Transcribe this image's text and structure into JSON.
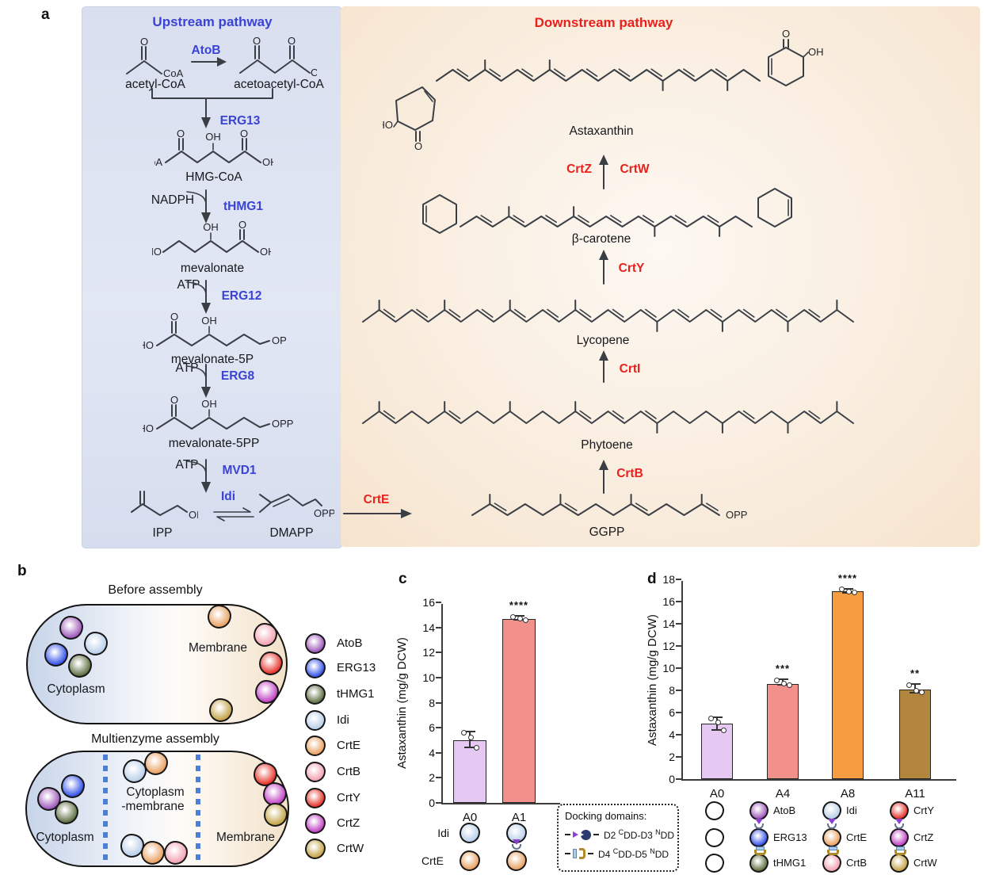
{
  "figure": {
    "a": "a",
    "b": "b",
    "c": "c",
    "d": "d"
  },
  "panel_a": {
    "upstream_title": "Upstream pathway",
    "downstream_title": "Downstream pathway",
    "colors": {
      "upstream_accent": "#3a43d4",
      "downstream_accent": "#e8211d"
    },
    "enzymes_upstream": [
      "AtoB",
      "ERG13",
      "tHMG1",
      "ERG12",
      "ERG8",
      "MVD1",
      "Idi"
    ],
    "enzymes_downstream": [
      "CrtE",
      "CrtB",
      "CrtI",
      "CrtY",
      "CrtZ",
      "CrtW"
    ],
    "cofactors": [
      "NADPH",
      "ATP",
      "ATP",
      "ATP"
    ],
    "molecules": {
      "acetyl_coa": {
        "name": "acetyl-CoA",
        "atoms": [
          "O",
          "CoA"
        ]
      },
      "acetoacetyl_coa": {
        "name": "acetoacetyl-CoA",
        "atoms": [
          "O",
          "O",
          "CoA"
        ]
      },
      "hmg_coa": {
        "name": "HMG-CoA",
        "atoms": [
          "CoA",
          "O",
          "OH",
          "O",
          "OH"
        ]
      },
      "mevalonate": {
        "name": "mevalonate",
        "atoms": [
          "HO",
          "OH",
          "O",
          "OH"
        ]
      },
      "mevalonate_5p": {
        "name": "mevalonate-5P",
        "atoms": [
          "HO",
          "O",
          "OH",
          "OP"
        ]
      },
      "mevalonate_5pp": {
        "name": "mevalonate-5PP",
        "atoms": [
          "HO",
          "O",
          "OH",
          "OPP"
        ]
      },
      "ipp": {
        "name": "IPP",
        "atoms": [
          "OPP"
        ]
      },
      "dmapp": {
        "name": "DMAPP",
        "atoms": [
          "OPP"
        ]
      },
      "ggpp": {
        "name": "GGPP",
        "atoms": [
          "OPP"
        ]
      },
      "phytoene": {
        "name": "Phytoene"
      },
      "lycopene": {
        "name": "Lycopene"
      },
      "beta_carotene": {
        "name": "β-carotene"
      },
      "astaxanthin": {
        "name": "Astaxanthin",
        "atoms": [
          "HO",
          "O",
          "O",
          "OH"
        ]
      }
    }
  },
  "panel_b": {
    "before_title": "Before assembly",
    "assembly_title": "Multienzyme assembly",
    "membrane_label": "Membrane",
    "cytoplasm_label": "Cytoplasm",
    "cyto_membrane_label": [
      "Cytoplasm",
      "-membrane"
    ]
  },
  "enzymes": [
    {
      "name": "AtoB",
      "color": "#9c56b8"
    },
    {
      "name": "ERG13",
      "color": "#3350e8"
    },
    {
      "name": "tHMG1",
      "color": "#5c6c3f"
    },
    {
      "name": "Idi",
      "color": "#b9cfe9"
    },
    {
      "name": "CrtE",
      "color": "#e8a060"
    },
    {
      "name": "CrtB",
      "color": "#f2a0b0"
    },
    {
      "name": "CrtY",
      "color": "#e63028"
    },
    {
      "name": "CrtZ",
      "color": "#bf3fc4"
    },
    {
      "name": "CrtW",
      "color": "#c2a244"
    }
  ],
  "dock": {
    "title": "Docking domains:",
    "rows": [
      {
        "pre": "D2 ",
        "sup1": "C",
        "mid": "DD-D3 ",
        "sup2": "N",
        "post": "DD"
      },
      {
        "pre": "D4 ",
        "sup1": "C",
        "mid": "DD-D5 ",
        "sup2": "N",
        "post": "DD"
      }
    ]
  },
  "chart_data": [
    {
      "type": "bar",
      "panel": "c",
      "title": "",
      "xlabel": "",
      "ylabel": "Astaxanthin (mg/g DCW)",
      "categories": [
        "A0",
        "A1"
      ],
      "values": [
        5.0,
        14.7
      ],
      "points": [
        [
          5.6,
          5.2,
          4.4
        ],
        [
          14.85,
          14.7,
          14.6
        ]
      ],
      "significance": [
        "",
        "****"
      ],
      "bar_colors": [
        "#e6c9f2",
        "#f2918b"
      ],
      "ylim": [
        0,
        16
      ],
      "ytick_step": 2,
      "grid": false,
      "legend": "none"
    },
    {
      "type": "bar",
      "panel": "d",
      "title": "",
      "xlabel": "",
      "ylabel": "Astaxanthin (mg/g DCW)",
      "categories": [
        "A0",
        "A4",
        "A8",
        "A11"
      ],
      "values": [
        5.0,
        8.6,
        16.9,
        8.1
      ],
      "points": [
        [
          5.5,
          5.1,
          4.4
        ],
        [
          8.9,
          8.6,
          8.5
        ],
        [
          17.1,
          16.9,
          16.8
        ],
        [
          8.5,
          8.0,
          7.8
        ]
      ],
      "significance": [
        "",
        "***",
        "****",
        "**"
      ],
      "bar_colors": [
        "#e6c9f2",
        "#f2918b",
        "#f69d41",
        "#b2873d"
      ],
      "ylim": [
        0,
        18
      ],
      "ytick_step": 2,
      "grid": false,
      "legend": "none"
    }
  ]
}
